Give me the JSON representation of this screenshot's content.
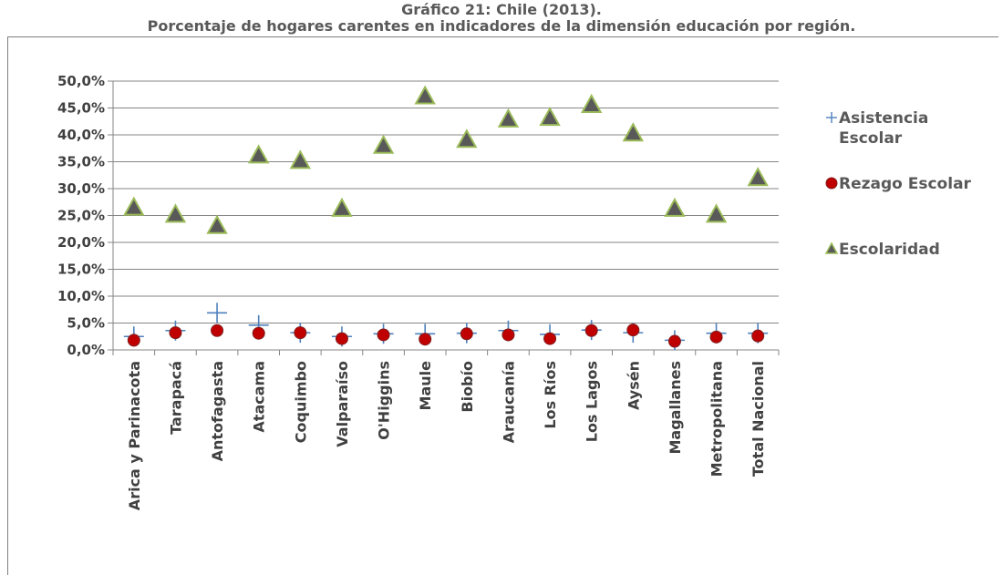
{
  "chart_data": {
    "type": "scatter",
    "title": "Gráfico 21: Chile (2013).",
    "subtitle": "Porcentaje de hogares carentes en indicadores de la dimensión educación por región.",
    "ylim": [
      0,
      50
    ],
    "yticks": [
      "0,0%",
      "5,0%",
      "10,0%",
      "15,0%",
      "20,0%",
      "25,0%",
      "30,0%",
      "35,0%",
      "40,0%",
      "45,0%",
      "50,0%"
    ],
    "grid": true,
    "legend_position": "right",
    "categories": [
      "Arica y Parinacota",
      "Tarapacá",
      "Antofagasta",
      "Atacama",
      "Coquimbo",
      "Valparaíso",
      "O'Higgins",
      "Maule",
      "Biobío",
      "Araucanía",
      "Los Ríos",
      "Los Lagos",
      "Aysén",
      "Magallanes",
      "Metropolitana",
      "Total Nacional"
    ],
    "series": [
      {
        "name": "Asistencia Escolar",
        "name_lines": [
          "Asistencia",
          "Escolar"
        ],
        "marker": "plus",
        "color": "#4f81bd",
        "values": [
          2.5,
          3.6,
          6.9,
          4.6,
          3.2,
          2.5,
          3.0,
          3.0,
          3.1,
          3.6,
          2.9,
          3.7,
          3.2,
          1.8,
          3.1,
          3.1
        ]
      },
      {
        "name": "Rezago Escolar",
        "name_lines": [
          "Rezago Escolar"
        ],
        "marker": "circle",
        "color": "#c00000",
        "values": [
          1.8,
          3.2,
          3.6,
          3.1,
          3.2,
          2.1,
          2.8,
          2.0,
          3.0,
          2.8,
          2.1,
          3.6,
          3.7,
          1.6,
          2.4,
          2.6
        ]
      },
      {
        "name": "Escolaridad",
        "name_lines": [
          "Escolaridad"
        ],
        "marker": "triangle",
        "color": "#595959",
        "edge_color": "#9bbb59",
        "values": [
          26.5,
          25.2,
          23.1,
          36.2,
          35.2,
          26.3,
          38.0,
          47.2,
          39.1,
          42.9,
          43.2,
          45.6,
          40.3,
          26.3,
          25.2,
          32.0
        ]
      }
    ]
  }
}
